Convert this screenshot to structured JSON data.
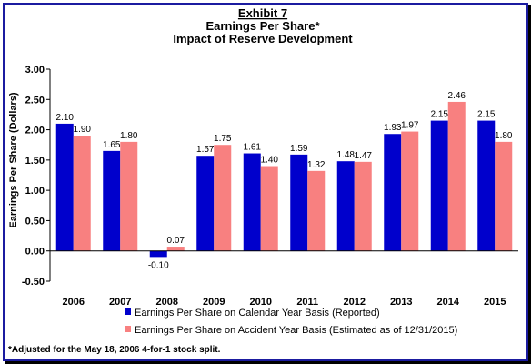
{
  "chart_data": {
    "type": "bar",
    "title_lines": [
      "Exhibit 7",
      "Earnings Per Share*",
      "Impact of Reserve Development"
    ],
    "ylabel": "Earnings Per Share (Dollars)",
    "xlabel": "",
    "categories": [
      "2006",
      "2007",
      "2008",
      "2009",
      "2010",
      "2011",
      "2012",
      "2013",
      "2014",
      "2015"
    ],
    "ylim": [
      -0.5,
      3.0
    ],
    "yticks": [
      "-0.50",
      "0.00",
      "0.50",
      "1.00",
      "1.50",
      "2.00",
      "2.50",
      "3.00"
    ],
    "grid": false,
    "legend_position": "bottom",
    "series": [
      {
        "name": "Earnings Per Share on Calendar Year Basis (Reported)",
        "color": "#0000cc",
        "values": [
          2.1,
          1.65,
          -0.1,
          1.57,
          1.61,
          1.59,
          1.48,
          1.93,
          2.15,
          2.15
        ],
        "labels": [
          "2.10",
          "1.65",
          "-0.10",
          "1.57",
          "1.61",
          "1.59",
          "1.48",
          "1.93",
          "2.15",
          "2.15"
        ]
      },
      {
        "name": "Earnings Per Share on Accident Year Basis (Estimated as of 12/31/2015)",
        "color": "#f88080",
        "values": [
          1.9,
          1.8,
          0.07,
          1.75,
          1.4,
          1.32,
          1.47,
          1.97,
          2.46,
          1.8
        ],
        "labels": [
          "1.90",
          "1.80",
          "0.07",
          "1.75",
          "1.40",
          "1.32",
          "1.47",
          "1.97",
          "2.46",
          "1.80"
        ]
      }
    ],
    "footnote": "*Adjusted for the May 18, 2006 4-for-1 stock split."
  }
}
